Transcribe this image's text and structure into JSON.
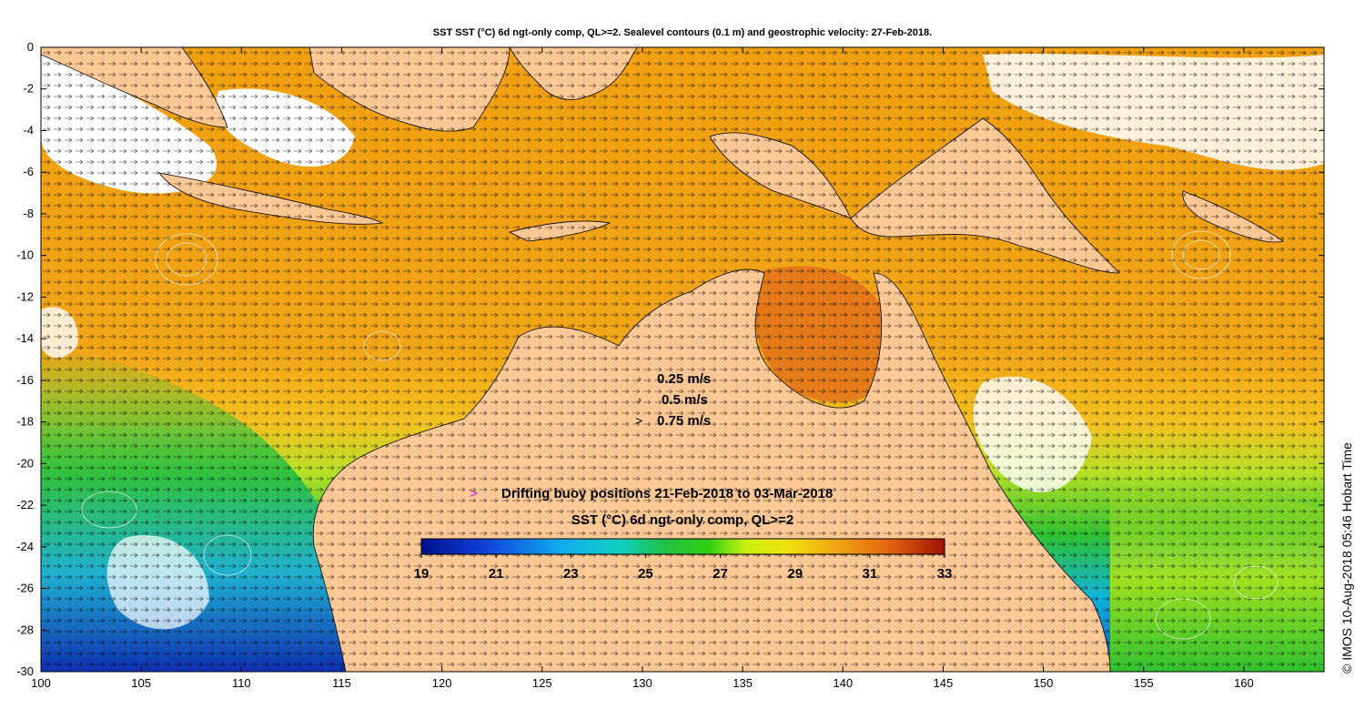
{
  "title": "SST SST (°C) 6d ngt-only comp, QL>=2. Sealevel contours (0.1 m) and geostrophic velocity: 27-Feb-2018.",
  "side_credit": "© IMOS 10-Aug-2018 05:46 Hobart Time",
  "axes": {
    "x_ticks": [
      "100",
      "105",
      "110",
      "115",
      "120",
      "125",
      "130",
      "135",
      "140",
      "145",
      "150",
      "155",
      "160"
    ],
    "y_ticks": [
      "0",
      "-2",
      "-4",
      "-6",
      "-8",
      "-10",
      "-12",
      "-14",
      "-16",
      "-18",
      "-20",
      "-22",
      "-24",
      "-26",
      "-28",
      "-30"
    ],
    "xlim": [
      100,
      164
    ],
    "ylim": [
      -30,
      0
    ]
  },
  "velocity_legend": {
    "items": [
      {
        "label": "0.25 m/s",
        "speed": 0.25
      },
      {
        "label": "0.5 m/s",
        "speed": 0.5
      },
      {
        "label": "0.75 m/s",
        "speed": 0.75
      }
    ]
  },
  "buoy_legend": {
    "symbol": ">",
    "label": "Drifting buoy positions 21-Feb-2018 to 03-Mar-2018",
    "color": "#ff00ff"
  },
  "colorbar": {
    "title": "SST (°C) 6d ngt-only comp, QL>=2",
    "ticks": [
      "19",
      "21",
      "23",
      "25",
      "27",
      "29",
      "31",
      "33"
    ],
    "min": 19,
    "max": 33
  },
  "colors": {
    "land": "#fcc896",
    "warm_sst": "#f4a010",
    "hot_sst": "#e0701a",
    "mid_sst": "#c8e020",
    "green_sst": "#30c030",
    "cool_sst": "#10b0e0",
    "cold_sst": "#1040c0",
    "contours": "#ffffff",
    "shoreline": "#000000",
    "cloud_mask": "#ffffff"
  }
}
